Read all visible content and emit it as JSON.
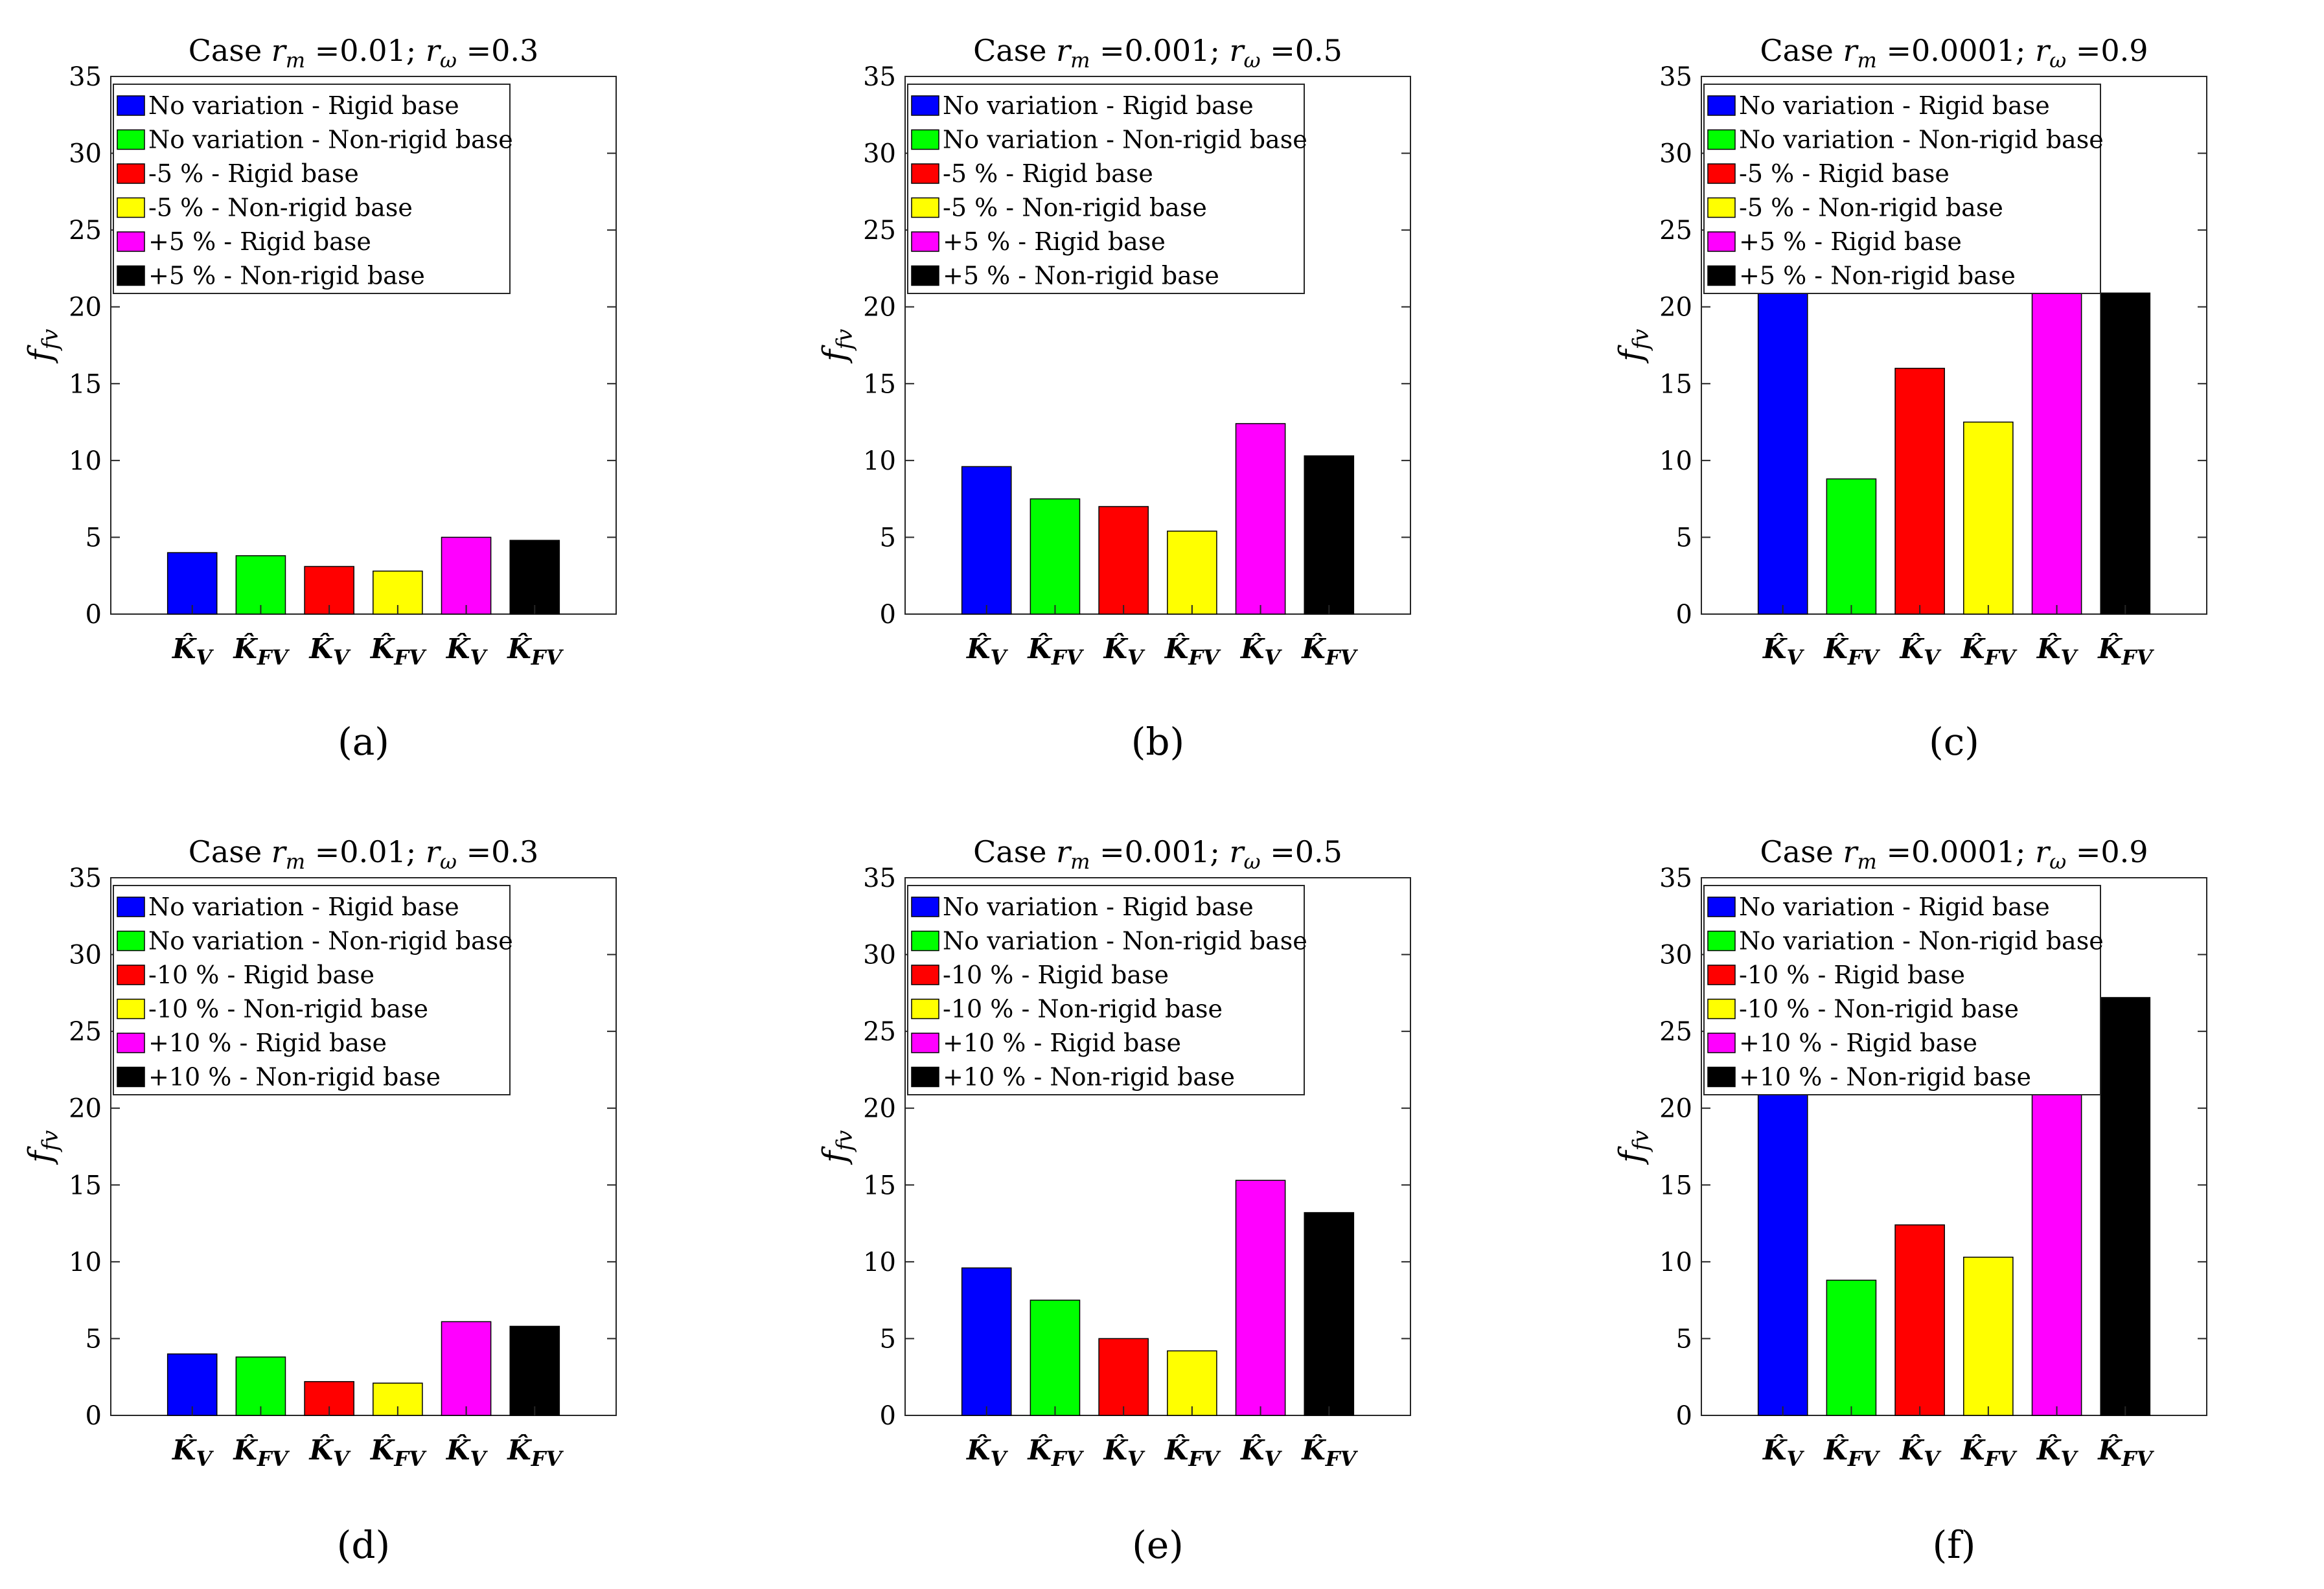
{
  "chart_data": [
    {
      "type": "bar",
      "panel_label": "(a)",
      "title": {
        "prefix": "Case ",
        "rm": "=0.01",
        "sep": "; ",
        "rw": "=0.3"
      },
      "ylabel": "f_fv",
      "ylim": [
        0,
        35
      ],
      "yticks": [
        0,
        5,
        10,
        15,
        20,
        25,
        30,
        35
      ],
      "categories": [
        "K̂_V",
        "K̂_FV",
        "K̂_V",
        "K̂_FV",
        "K̂_V",
        "K̂_FV"
      ],
      "values": [
        4.0,
        3.8,
        3.1,
        2.8,
        5.0,
        4.8
      ],
      "colors": [
        "#0000ff",
        "#00ff00",
        "#ff0000",
        "#ffff00",
        "#ff00ff",
        "#000000"
      ],
      "legend": [
        "No variation - Rigid base",
        "No variation - Non-rigid base",
        "-5 % - Rigid base",
        "-5 % - Non-rigid base",
        "+5 % - Rigid base",
        "+5 % - Non-rigid base"
      ],
      "legend_position": "top-left",
      "grid": false
    },
    {
      "type": "bar",
      "panel_label": "(b)",
      "title": {
        "prefix": "Case ",
        "rm": "=0.001",
        "sep": "; ",
        "rw": "=0.5"
      },
      "ylabel": "f_fv",
      "ylim": [
        0,
        35
      ],
      "yticks": [
        0,
        5,
        10,
        15,
        20,
        25,
        30,
        35
      ],
      "categories": [
        "K̂_V",
        "K̂_FV",
        "K̂_V",
        "K̂_FV",
        "K̂_V",
        "K̂_FV"
      ],
      "values": [
        9.6,
        7.5,
        7.0,
        5.4,
        12.4,
        10.3
      ],
      "colors": [
        "#0000ff",
        "#00ff00",
        "#ff0000",
        "#ffff00",
        "#ff00ff",
        "#000000"
      ],
      "legend": [
        "No variation - Rigid base",
        "No variation - Non-rigid base",
        "-5 % - Rigid base",
        "-5 % - Non-rigid base",
        "+5 % - Rigid base",
        "+5 % - Non-rigid base"
      ],
      "legend_position": "top-left",
      "grid": false
    },
    {
      "type": "bar",
      "panel_label": "(c)",
      "title": {
        "prefix": "Case ",
        "rm": "=0.0001",
        "sep": "; ",
        "rw": "=0.9"
      },
      "ylabel": "f_fv",
      "ylim": [
        0,
        35
      ],
      "yticks": [
        0,
        5,
        10,
        15,
        20,
        25,
        30,
        35
      ],
      "categories": [
        "K̂_V",
        "K̂_FV",
        "K̂_V",
        "K̂_FV",
        "K̂_V",
        "K̂_FV"
      ],
      "values": [
        21.4,
        8.8,
        16.0,
        12.5,
        27.2,
        20.9
      ],
      "colors": [
        "#0000ff",
        "#00ff00",
        "#ff0000",
        "#ffff00",
        "#ff00ff",
        "#000000"
      ],
      "legend": [
        "No variation - Rigid base",
        "No variation - Non-rigid base",
        "-5 % - Rigid base",
        "-5 % - Non-rigid base",
        "+5 % - Rigid base",
        "+5 % - Non-rigid base"
      ],
      "legend_position": "top-left",
      "grid": false
    },
    {
      "type": "bar",
      "panel_label": "(d)",
      "title": {
        "prefix": "Case ",
        "rm": "=0.01",
        "sep": "; ",
        "rw": "=0.3"
      },
      "ylabel": "f_fv",
      "ylim": [
        0,
        35
      ],
      "yticks": [
        0,
        5,
        10,
        15,
        20,
        25,
        30,
        35
      ],
      "categories": [
        "K̂_V",
        "K̂_FV",
        "K̂_V",
        "K̂_FV",
        "K̂_V",
        "K̂_FV"
      ],
      "values": [
        4.0,
        3.8,
        2.2,
        2.1,
        6.1,
        5.8
      ],
      "colors": [
        "#0000ff",
        "#00ff00",
        "#ff0000",
        "#ffff00",
        "#ff00ff",
        "#000000"
      ],
      "legend": [
        "No variation - Rigid base",
        "No variation - Non-rigid base",
        "-10 % - Rigid base",
        "-10 % - Non-rigid base",
        "+10 % - Rigid base",
        "+10 % - Non-rigid base"
      ],
      "legend_position": "top-left",
      "grid": false
    },
    {
      "type": "bar",
      "panel_label": "(e)",
      "title": {
        "prefix": "Case ",
        "rm": "=0.001",
        "sep": "; ",
        "rw": "=0.5"
      },
      "ylabel": "f_fv",
      "ylim": [
        0,
        35
      ],
      "yticks": [
        0,
        5,
        10,
        15,
        20,
        25,
        30,
        35
      ],
      "categories": [
        "K̂_V",
        "K̂_FV",
        "K̂_V",
        "K̂_FV",
        "K̂_V",
        "K̂_FV"
      ],
      "values": [
        9.6,
        7.5,
        5.0,
        4.2,
        15.3,
        13.2
      ],
      "colors": [
        "#0000ff",
        "#00ff00",
        "#ff0000",
        "#ffff00",
        "#ff00ff",
        "#000000"
      ],
      "legend": [
        "No variation - Rigid base",
        "No variation - Non-rigid base",
        "-10 % - Rigid base",
        "-10 % - Non-rigid base",
        "+10 % - Rigid base",
        "+10 % - Non-rigid base"
      ],
      "legend_position": "top-left",
      "grid": false
    },
    {
      "type": "bar",
      "panel_label": "(f)",
      "title": {
        "prefix": "Case ",
        "rm": "=0.0001",
        "sep": "; ",
        "rw": "=0.9"
      },
      "ylabel": "f_fv",
      "ylim": [
        0,
        35
      ],
      "yticks": [
        0,
        5,
        10,
        15,
        20,
        25,
        30,
        35
      ],
      "categories": [
        "K̂_V",
        "K̂_FV",
        "K̂_V",
        "K̂_FV",
        "K̂_V",
        "K̂_FV"
      ],
      "values": [
        21.4,
        8.8,
        12.4,
        10.3,
        33.4,
        27.2
      ],
      "colors": [
        "#0000ff",
        "#00ff00",
        "#ff0000",
        "#ffff00",
        "#ff00ff",
        "#000000"
      ],
      "legend": [
        "No variation - Rigid base",
        "No variation - Non-rigid base",
        "-10 % - Rigid base",
        "-10 % - Non-rigid base",
        "+10 % - Rigid base",
        "+10 % - Non-rigid base"
      ],
      "legend_position": "top-left",
      "grid": false
    }
  ]
}
